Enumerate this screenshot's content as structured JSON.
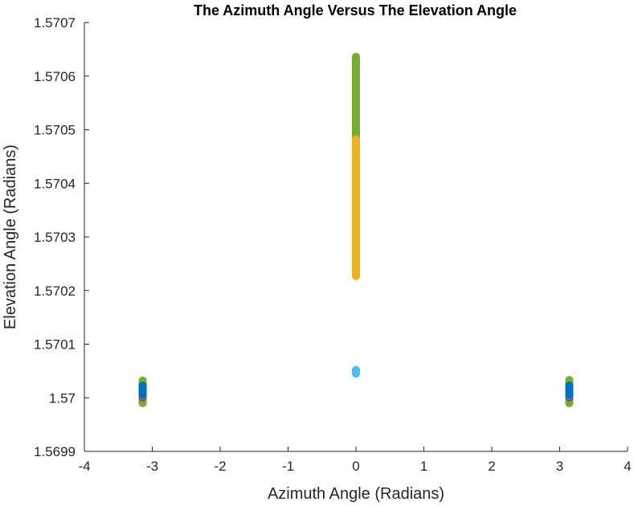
{
  "chart_data": {
    "type": "scatter",
    "title": "The Azimuth Angle Versus The Elevation Angle",
    "xlabel": "Azimuth Angle (Radians)",
    "ylabel": "Elevation Angle (Radians)",
    "xlim": [
      -4,
      4
    ],
    "ylim": [
      1.5699,
      1.5707
    ],
    "xticks": [
      -4,
      -3,
      -2,
      -1,
      0,
      1,
      2,
      3,
      4
    ],
    "xtick_labels": [
      "-4",
      "-3",
      "-2",
      "-1",
      "0",
      "1",
      "2",
      "3",
      "4"
    ],
    "yticks": [
      1.5699,
      1.57,
      1.5701,
      1.5702,
      1.5703,
      1.5704,
      1.5705,
      1.5706,
      1.5707
    ],
    "ytick_labels": [
      "1.5699",
      "1.57",
      "1.5701",
      "1.5702",
      "1.5703",
      "1.5704",
      "1.5705",
      "1.5706",
      "1.5707"
    ],
    "grid": false,
    "box": "left-bottom axes only",
    "marker": "filled circle",
    "series": [
      {
        "color": "#77AC30",
        "x": -3.1416,
        "y_range": [
          1.56999,
          1.570032
        ],
        "points": [
          [
            -3.1416,
            1.570032
          ],
          [
            -3.1416,
            1.570031
          ],
          [
            -3.1416,
            1.570029
          ],
          [
            -3.1416,
            1.570027
          ],
          [
            -3.1416,
            1.56999
          ]
        ]
      },
      {
        "color": "#7E2F8E",
        "x": -3.1416,
        "y_range": [
          1.570001,
          1.570004
        ],
        "points": []
      },
      {
        "color": "#EDB120",
        "x": -3.1416,
        "y_range": [
          1.570004,
          1.570006
        ],
        "points": []
      },
      {
        "color": "#0072BD",
        "x": -3.1416,
        "y_range": [
          1.570005,
          1.570023
        ],
        "points": []
      },
      {
        "color": "#77AC30",
        "x": 0.0,
        "y_range": [
          1.570422,
          1.570636
        ],
        "points": []
      },
      {
        "color": "#EDB120",
        "x": 0.0,
        "y_range": [
          1.570227,
          1.570482
        ],
        "points": []
      },
      {
        "color": "#4DBEEE",
        "x": 0.0,
        "y_range": [
          1.570045,
          1.570052
        ],
        "points": []
      },
      {
        "color": "#77AC30",
        "x": 3.1416,
        "y_range": [
          1.56999,
          1.570033
        ],
        "points": [
          [
            3.1416,
            1.570033
          ],
          [
            3.1416,
            1.570032
          ],
          [
            3.1416,
            1.57003
          ],
          [
            3.1416,
            1.570028
          ],
          [
            3.1416,
            1.56999
          ]
        ]
      },
      {
        "color": "#7E2F8E",
        "x": 3.1416,
        "y_range": [
          1.570001,
          1.570004
        ],
        "points": []
      },
      {
        "color": "#EDB120",
        "x": 3.1416,
        "y_range": [
          1.570004,
          1.570006
        ],
        "points": []
      },
      {
        "color": "#0072BD",
        "x": 3.1416,
        "y_range": [
          1.570005,
          1.570023
        ],
        "points": []
      }
    ]
  }
}
